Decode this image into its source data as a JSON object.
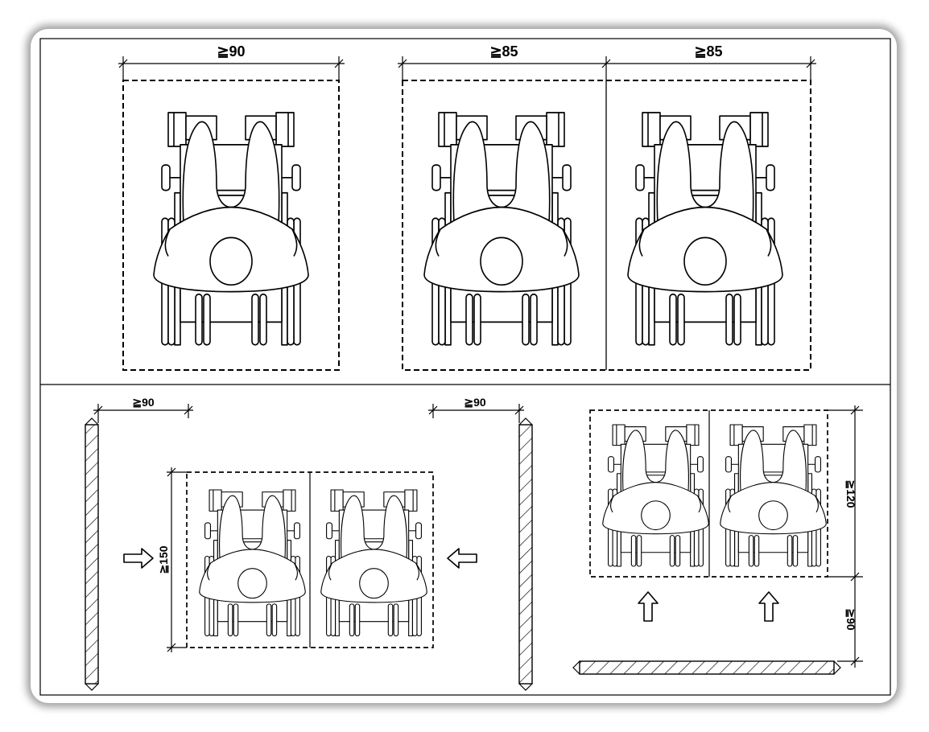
{
  "labels": {
    "top_single_width": "≧90",
    "top_pair_width_left": "≧85",
    "top_pair_width_right": "≧85",
    "bottom_left_clearance": "≧90",
    "bottom_mid_clearance": "≧90",
    "bottom_left_depth": "≧150",
    "right_pair_depth": "≧120",
    "right_aisle_depth": "≧90"
  },
  "icons": {
    "wheelchair": "wheelchair-user-plan-icon",
    "arrow": "approach-arrow-icon",
    "wall": "hatched-wall-icon"
  },
  "colors": {
    "line": "#000000",
    "background": "#ffffff"
  }
}
